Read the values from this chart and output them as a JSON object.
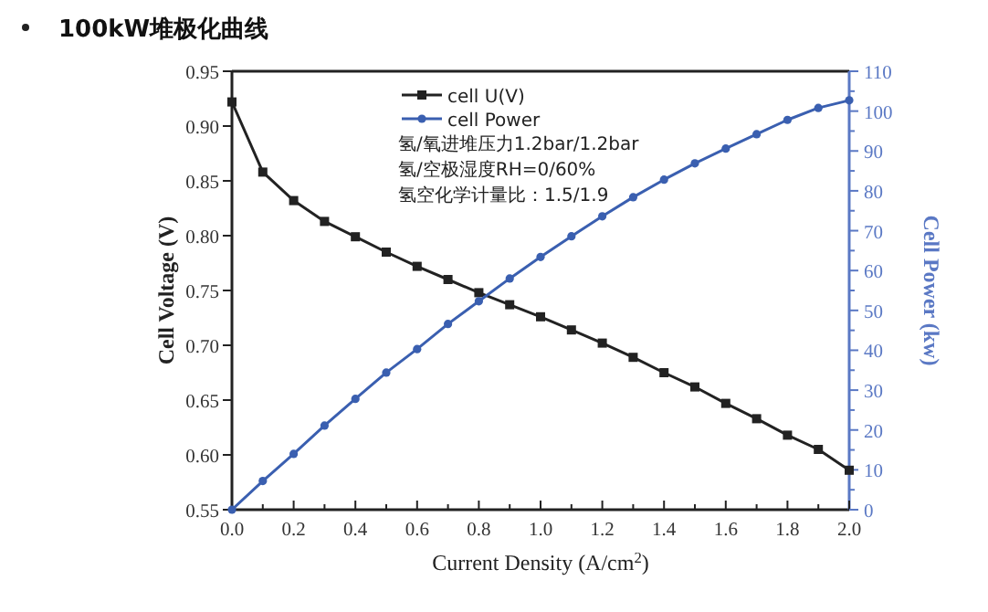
{
  "chart_data": {
    "type": "line",
    "title": "100kW堆极化曲线",
    "xlabel": "Current Density (A/cm$^{2}$)",
    "ylabel": "Cell Voltage (V)",
    "y2label": "Cell Power (kw)",
    "x": [
      0,
      0.1,
      0.2,
      0.3,
      0.4,
      0.5,
      0.6,
      0.7,
      0.8,
      0.9,
      1.0,
      1.1,
      1.2,
      1.3,
      1.4,
      1.5,
      1.6,
      1.7,
      1.8,
      1.9,
      2.0
    ],
    "series": [
      {
        "name": "cell U(V)",
        "color": "#222222",
        "marker": "square",
        "values": [
          0.922,
          0.858,
          0.832,
          0.813,
          0.799,
          0.785,
          0.772,
          0.76,
          0.748,
          0.737,
          0.726,
          0.714,
          0.702,
          0.689,
          0.675,
          0.662,
          0.647,
          0.633,
          0.618,
          0.605,
          0.586
        ]
      },
      {
        "name": "cell Power",
        "color": "#3a5fb0",
        "marker": "circle",
        "axis": "y2",
        "values": [
          0,
          7.2,
          14.0,
          21.1,
          27.8,
          34.4,
          40.3,
          46.6,
          52.3,
          58.0,
          63.4,
          68.6,
          73.6,
          78.4,
          82.8,
          86.9,
          90.6,
          94.2,
          97.8,
          100.8,
          102.7
        ]
      }
    ],
    "xlim": [
      0,
      2.0
    ],
    "xticks": [
      {
        "value": 0,
        "label": "0.0"
      },
      0.2,
      0.4,
      0.6,
      0.8,
      {
        "value": 1,
        "label": "1.0"
      },
      1.2,
      1.4,
      1.6,
      1.8,
      {
        "value": 2,
        "label": "2.0"
      }
    ],
    "ylim": [
      0.55,
      0.95
    ],
    "yticks": [
      0.55,
      {
        "value": 0.6,
        "label": "0.60"
      },
      0.65,
      {
        "value": 0.7,
        "label": "0.70"
      },
      0.75,
      {
        "value": 0.8,
        "label": "0.80"
      },
      0.85,
      {
        "value": 0.9,
        "label": "0.90"
      },
      0.95
    ],
    "y2lim": [
      0,
      110
    ],
    "y2ticks": [
      0,
      10,
      20,
      30,
      40,
      50,
      60,
      70,
      80,
      90,
      100,
      110
    ],
    "annotations": [
      "氢/氧进堆压力1.2bar/1.2bar",
      "氢/空极湿度RH=0/60%",
      "氢空化学计量比：1.5/1.9"
    ],
    "legend": "top",
    "grid": false
  }
}
